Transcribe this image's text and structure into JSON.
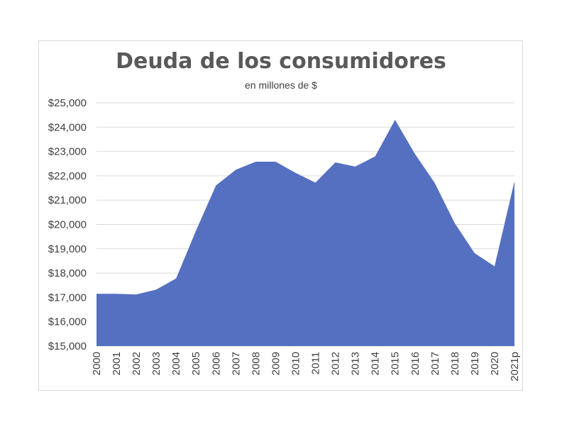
{
  "chart_data": {
    "type": "area",
    "title": "Deuda de los consumidores",
    "subtitle": "en millones de $",
    "xlabel": "",
    "ylabel": "",
    "categories": [
      "2000",
      "2001",
      "2002",
      "2003",
      "2004",
      "2005",
      "2006",
      "2007",
      "2008",
      "2009",
      "2010",
      "2011",
      "2012",
      "2013",
      "2014",
      "2015",
      "2016",
      "2017",
      "2018",
      "2019",
      "2020",
      "2021p"
    ],
    "values": [
      17150,
      17150,
      17120,
      17320,
      17780,
      19750,
      21600,
      22250,
      22580,
      22580,
      22120,
      21720,
      22550,
      22380,
      22800,
      24300,
      22900,
      21700,
      20050,
      18820,
      18280,
      21780
    ],
    "ylim": [
      15000,
      25000
    ],
    "yticks": [
      15000,
      16000,
      17000,
      18000,
      19000,
      20000,
      21000,
      22000,
      23000,
      24000,
      25000
    ],
    "ytick_labels": [
      "$15,000",
      "$16,000",
      "$17,000",
      "$18,000",
      "$19,000",
      "$20,000",
      "$21,000",
      "$22,000",
      "$23,000",
      "$24,000",
      "$25,000"
    ],
    "grid": true,
    "colors": {
      "fill": "#5570c1",
      "grid": "#d9d9d9",
      "text": "#404040",
      "title": "#595959"
    }
  }
}
